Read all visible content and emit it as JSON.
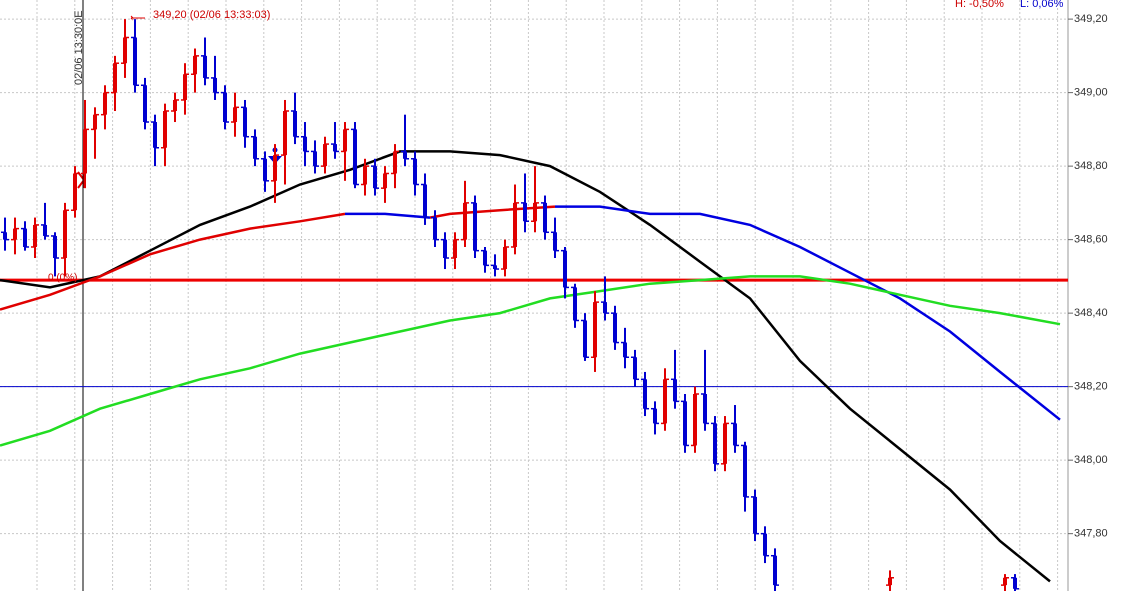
{
  "chart_data": {
    "type": "ohlc",
    "high_label": "349,20 (02/06 13:33:03)",
    "time_label": "02/06 13:30:0E",
    "zero_label": "0 (0%)",
    "h_label": "H: -0,50%",
    "l_label": "L: 0,06%",
    "up_color": "#e00000",
    "down_color": "#0000d0",
    "x": [
      1,
      3,
      5,
      7,
      9,
      11,
      13,
      15,
      17,
      19,
      21,
      23,
      25,
      27,
      29,
      31,
      33,
      35,
      37,
      39,
      41,
      43,
      45,
      47,
      49,
      51,
      53,
      55,
      57,
      59,
      61,
      63,
      65,
      67,
      69,
      71,
      73,
      75,
      77,
      79,
      81,
      83,
      85,
      87,
      89,
      91,
      93,
      95,
      97,
      99,
      101,
      103,
      105,
      107,
      109,
      111,
      113,
      115,
      117,
      119,
      121,
      123,
      125,
      127,
      129,
      131,
      133,
      135,
      137,
      139,
      141,
      143,
      145,
      147,
      149,
      151,
      153,
      155,
      178,
      201,
      203
    ],
    "open": [
      348.62,
      348.6,
      348.63,
      348.58,
      348.64,
      348.61,
      348.55,
      348.68,
      348.78,
      348.9,
      348.94,
      349.0,
      349.08,
      349.15,
      349.02,
      348.92,
      348.85,
      348.95,
      348.98,
      349.05,
      349.1,
      349.04,
      349.0,
      348.92,
      348.96,
      348.88,
      348.82,
      348.76,
      348.83,
      348.95,
      348.88,
      348.84,
      348.8,
      348.86,
      348.84,
      348.9,
      348.75,
      348.8,
      348.74,
      348.78,
      348.84,
      348.82,
      348.75,
      348.66,
      348.6,
      348.55,
      348.6,
      348.7,
      348.57,
      348.53,
      348.52,
      348.58,
      348.7,
      348.65,
      348.7,
      348.62,
      348.57,
      348.47,
      348.38,
      348.28,
      348.43,
      348.4,
      348.32,
      348.28,
      348.22,
      348.14,
      348.1,
      348.22,
      348.16,
      348.04,
      348.18,
      348.1,
      347.99,
      348.1,
      348.04,
      347.9,
      347.8,
      347.74,
      347.66,
      347.66,
      347.68
    ],
    "high": [
      348.66,
      348.66,
      348.65,
      348.66,
      348.7,
      348.62,
      348.7,
      348.8,
      348.98,
      348.96,
      349.02,
      349.1,
      349.2,
      349.2,
      349.04,
      348.94,
      348.97,
      349.0,
      349.08,
      349.12,
      349.15,
      349.1,
      349.02,
      349.0,
      348.98,
      348.9,
      348.84,
      348.86,
      348.98,
      349.0,
      348.92,
      348.87,
      348.88,
      348.92,
      348.92,
      348.92,
      348.82,
      348.82,
      348.8,
      348.86,
      348.94,
      348.84,
      348.78,
      348.68,
      348.62,
      348.62,
      348.76,
      348.72,
      348.58,
      348.56,
      348.6,
      348.75,
      348.78,
      348.8,
      348.72,
      348.66,
      348.58,
      348.48,
      348.4,
      348.46,
      348.5,
      348.42,
      348.36,
      348.3,
      348.24,
      348.16,
      348.25,
      348.3,
      348.18,
      348.2,
      348.3,
      348.12,
      348.12,
      348.15,
      348.05,
      347.92,
      347.82,
      347.76,
      347.7,
      347.69,
      347.69
    ],
    "low": [
      348.57,
      348.56,
      348.57,
      348.55,
      348.6,
      348.5,
      348.5,
      348.66,
      348.74,
      348.82,
      348.9,
      348.95,
      349.04,
      349.0,
      348.9,
      348.8,
      348.8,
      348.92,
      348.94,
      349.0,
      349.02,
      348.98,
      348.9,
      348.88,
      348.85,
      348.8,
      348.73,
      348.7,
      348.75,
      348.86,
      348.8,
      348.78,
      348.78,
      348.82,
      348.76,
      348.74,
      348.72,
      348.72,
      348.7,
      348.74,
      348.8,
      348.72,
      348.64,
      348.58,
      348.52,
      348.52,
      348.58,
      348.55,
      348.51,
      348.5,
      348.5,
      348.56,
      348.62,
      348.62,
      348.6,
      348.55,
      348.44,
      348.36,
      348.27,
      348.24,
      348.38,
      348.3,
      348.25,
      348.2,
      348.12,
      348.07,
      348.08,
      348.14,
      348.02,
      348.02,
      348.08,
      347.97,
      347.97,
      348.02,
      347.86,
      347.78,
      347.72,
      347.64,
      347.64,
      347.64,
      347.64
    ],
    "close": [
      348.6,
      348.63,
      348.58,
      348.64,
      348.61,
      348.55,
      348.68,
      348.78,
      348.9,
      348.94,
      349.0,
      349.08,
      349.15,
      349.02,
      348.92,
      348.85,
      348.95,
      348.98,
      349.05,
      349.1,
      349.04,
      349.0,
      348.92,
      348.96,
      348.88,
      348.82,
      348.76,
      348.83,
      348.95,
      348.88,
      348.84,
      348.8,
      348.86,
      348.84,
      348.9,
      348.75,
      348.8,
      348.74,
      348.78,
      348.84,
      348.82,
      348.75,
      348.66,
      348.6,
      348.55,
      348.6,
      348.7,
      348.57,
      348.53,
      348.52,
      348.58,
      348.7,
      348.65,
      348.7,
      348.62,
      348.57,
      348.47,
      348.38,
      348.28,
      348.43,
      348.4,
      348.32,
      348.28,
      348.22,
      348.14,
      348.1,
      348.22,
      348.16,
      348.04,
      348.18,
      348.1,
      347.99,
      348.1,
      348.04,
      347.9,
      347.8,
      347.74,
      347.66,
      347.68,
      347.68,
      347.65
    ],
    "series": [
      {
        "color": "#000000",
        "x": [
          0,
          10,
          20,
          30,
          40,
          50,
          60,
          70,
          80,
          90,
          100,
          110,
          120,
          130,
          140,
          150,
          160,
          170,
          180,
          190,
          200,
          210
        ],
        "values": [
          348.49,
          348.47,
          348.5,
          348.57,
          348.64,
          348.69,
          348.75,
          348.79,
          348.84,
          348.84,
          348.83,
          348.8,
          348.73,
          348.64,
          348.54,
          348.44,
          348.27,
          348.14,
          348.03,
          347.92,
          347.78,
          347.67
        ]
      },
      {
        "color": "#e00000",
        "x": [
          0,
          10,
          20,
          30,
          40,
          50,
          60,
          69,
          77,
          86,
          90,
          100,
          111
        ],
        "values": [
          348.41,
          348.45,
          348.5,
          348.56,
          348.6,
          348.63,
          348.65,
          348.67,
          null,
          348.66,
          348.67,
          348.68,
          348.69
        ]
      },
      {
        "color": "#0000e0",
        "x": [
          69,
          77,
          86,
          95,
          111,
          120,
          130,
          140,
          150,
          160,
          170,
          180,
          190,
          200,
          212
        ],
        "values": [
          348.67,
          348.67,
          348.66,
          null,
          348.69,
          348.69,
          348.67,
          348.67,
          348.64,
          348.58,
          348.51,
          348.44,
          348.35,
          348.24,
          348.11
        ]
      },
      {
        "color": "#22dd22",
        "x": [
          0,
          10,
          20,
          30,
          40,
          50,
          60,
          70,
          80,
          90,
          100,
          110,
          120,
          130,
          140,
          150,
          160,
          170,
          180,
          190,
          200,
          212
        ],
        "values": [
          348.04,
          348.08,
          348.14,
          348.18,
          348.22,
          348.25,
          348.29,
          348.32,
          348.35,
          348.38,
          348.4,
          348.44,
          348.46,
          348.48,
          348.49,
          348.5,
          348.5,
          348.48,
          348.45,
          348.42,
          348.4,
          348.37
        ]
      }
    ],
    "hlines": [
      {
        "value": 348.49,
        "color": "#ee0000"
      },
      {
        "value": 348.2,
        "color": "#0000cc"
      }
    ],
    "vline_x": 16.6,
    "xlim": [
      0,
      213.6
    ],
    "ylim": [
      347.644,
      349.252
    ],
    "yticks": [
      {
        "value": 349.2,
        "label": "349,20"
      },
      {
        "value": 349.0,
        "label": "349,00"
      },
      {
        "value": 348.8,
        "label": "348,80"
      },
      {
        "value": 348.6,
        "label": "348,60"
      },
      {
        "value": 348.4,
        "label": "348,40"
      },
      {
        "value": 348.2,
        "label": "348,20"
      },
      {
        "value": 348.0,
        "label": "348,00"
      },
      {
        "value": 347.8,
        "label": "347,80"
      }
    ],
    "grid": true
  }
}
